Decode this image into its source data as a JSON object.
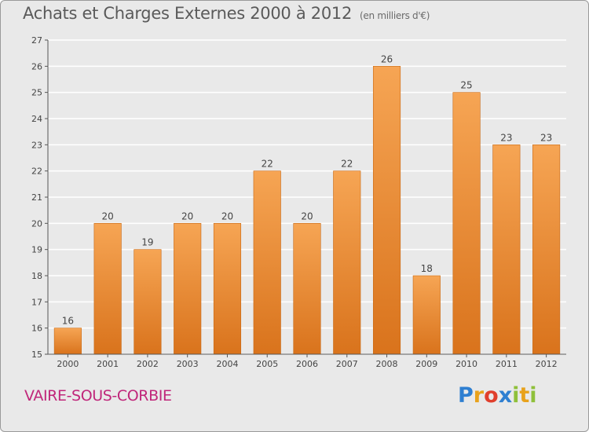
{
  "chart_data": {
    "type": "bar",
    "title": "Achats et Charges Externes 2000 à 2012",
    "subtitle": "(en milliers d'€)",
    "xlabel": "",
    "ylabel": "",
    "categories": [
      "2000",
      "2001",
      "2002",
      "2003",
      "2004",
      "2005",
      "2006",
      "2007",
      "2008",
      "2009",
      "2010",
      "2011",
      "2012"
    ],
    "values": [
      16,
      20,
      19,
      20,
      20,
      22,
      20,
      22,
      26,
      18,
      25,
      23,
      23
    ],
    "ylim": [
      15,
      27
    ],
    "yticks": [
      15,
      16,
      17,
      18,
      19,
      20,
      21,
      22,
      23,
      24,
      25,
      26,
      27
    ],
    "grid": true,
    "legend": "none",
    "bar_color": "#f0913a"
  },
  "footer": {
    "town": "VAIRE-SOUS-CORBIE",
    "town_color": "#c0267a"
  },
  "logo": {
    "letters": [
      "P",
      "r",
      "o",
      "x",
      "i",
      "t",
      "i"
    ],
    "colors": [
      "#2e7fd1",
      "#e8a21c",
      "#e03f2c",
      "#2e7fd1",
      "#8fc03a",
      "#e8a21c",
      "#8fc03a"
    ]
  }
}
